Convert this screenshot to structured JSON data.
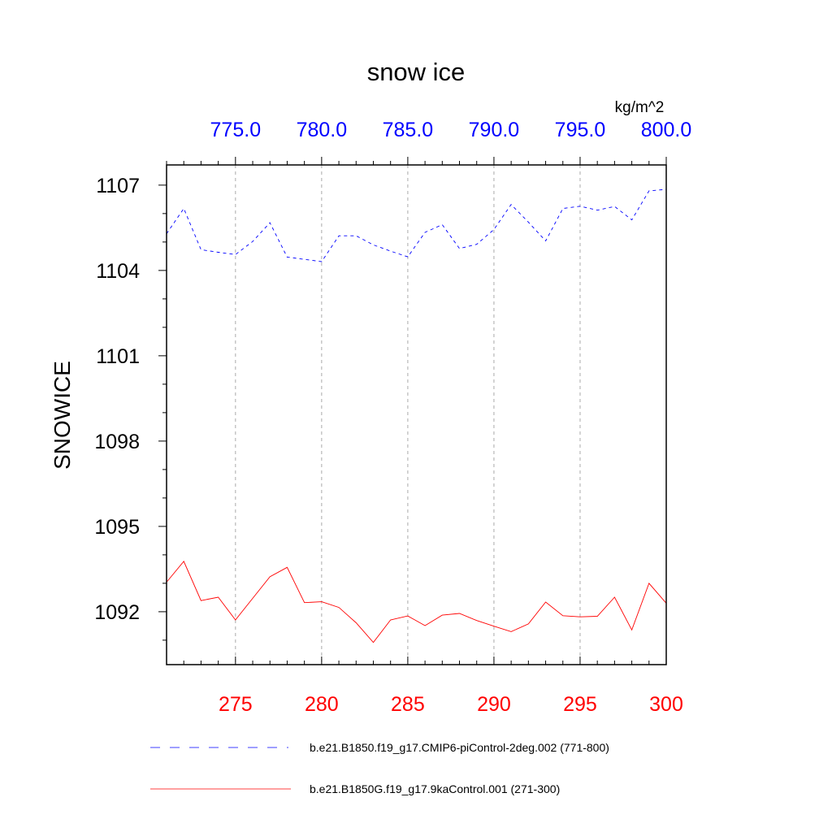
{
  "chart_data": {
    "type": "line",
    "title": "snow ice",
    "ylabel": "SNOWICE",
    "units": "kg/m^2",
    "ylim": [
      1090.14,
      1107.71
    ],
    "yticks": [
      "1092",
      "1095",
      "1098",
      "1101",
      "1104",
      "1107"
    ],
    "ytick_values": [
      1092,
      1095,
      1098,
      1101,
      1104,
      1107
    ],
    "grid": "vertical dashed at major x ticks",
    "legend_placement": "bottom",
    "x_bottom": {
      "range": [
        271,
        300
      ],
      "ticks": [
        "275",
        "280",
        "285",
        "290",
        "295",
        "300"
      ],
      "tick_values": [
        275,
        280,
        285,
        290,
        295,
        300
      ],
      "color": "#ff0000"
    },
    "x_top": {
      "range": [
        771,
        800
      ],
      "ticks": [
        "775.0",
        "780.0",
        "785.0",
        "790.0",
        "795.0",
        "800.0"
      ],
      "tick_values": [
        775,
        780,
        785,
        790,
        795,
        800
      ],
      "color": "#0000ff"
    },
    "series": [
      {
        "name": "b.e21.B1850.f19_g17.CMIP6-piControl-2deg.002 (771-800)",
        "axis": "top",
        "color": "#0000ff",
        "dash": "dashed",
        "x": [
          771,
          772,
          773,
          774,
          775,
          776,
          777,
          778,
          779,
          780,
          781,
          782,
          783,
          784,
          785,
          786,
          787,
          788,
          789,
          790,
          791,
          792,
          793,
          794,
          795,
          796,
          797,
          798,
          799,
          800
        ],
        "values": [
          1105.29,
          1106.18,
          1104.73,
          1104.64,
          1104.56,
          1105.02,
          1105.68,
          1104.47,
          1104.39,
          1104.31,
          1105.22,
          1105.22,
          1104.9,
          1104.68,
          1104.48,
          1105.34,
          1105.61,
          1104.77,
          1104.92,
          1105.44,
          1106.32,
          1105.7,
          1105.04,
          1106.18,
          1106.26,
          1106.12,
          1106.25,
          1105.78,
          1106.8,
          1106.85
        ]
      },
      {
        "name": "b.e21.B1850G.f19_g17.9kaControl.001 (271-300)",
        "axis": "bottom",
        "color": "#ff0000",
        "dash": "solid",
        "x": [
          271,
          272,
          273,
          274,
          275,
          276,
          277,
          278,
          279,
          280,
          281,
          282,
          283,
          284,
          285,
          286,
          287,
          288,
          289,
          290,
          291,
          292,
          293,
          294,
          295,
          296,
          297,
          298,
          299,
          300
        ],
        "values": [
          1093.04,
          1093.77,
          1092.39,
          1092.51,
          1091.71,
          1092.47,
          1093.23,
          1093.56,
          1092.32,
          1092.35,
          1092.15,
          1091.61,
          1090.92,
          1091.71,
          1091.85,
          1091.51,
          1091.88,
          1091.94,
          1091.69,
          1091.49,
          1091.3,
          1091.57,
          1092.34,
          1091.86,
          1091.82,
          1091.84,
          1092.51,
          1091.36,
          1093.0,
          1092.3
        ]
      }
    ]
  }
}
